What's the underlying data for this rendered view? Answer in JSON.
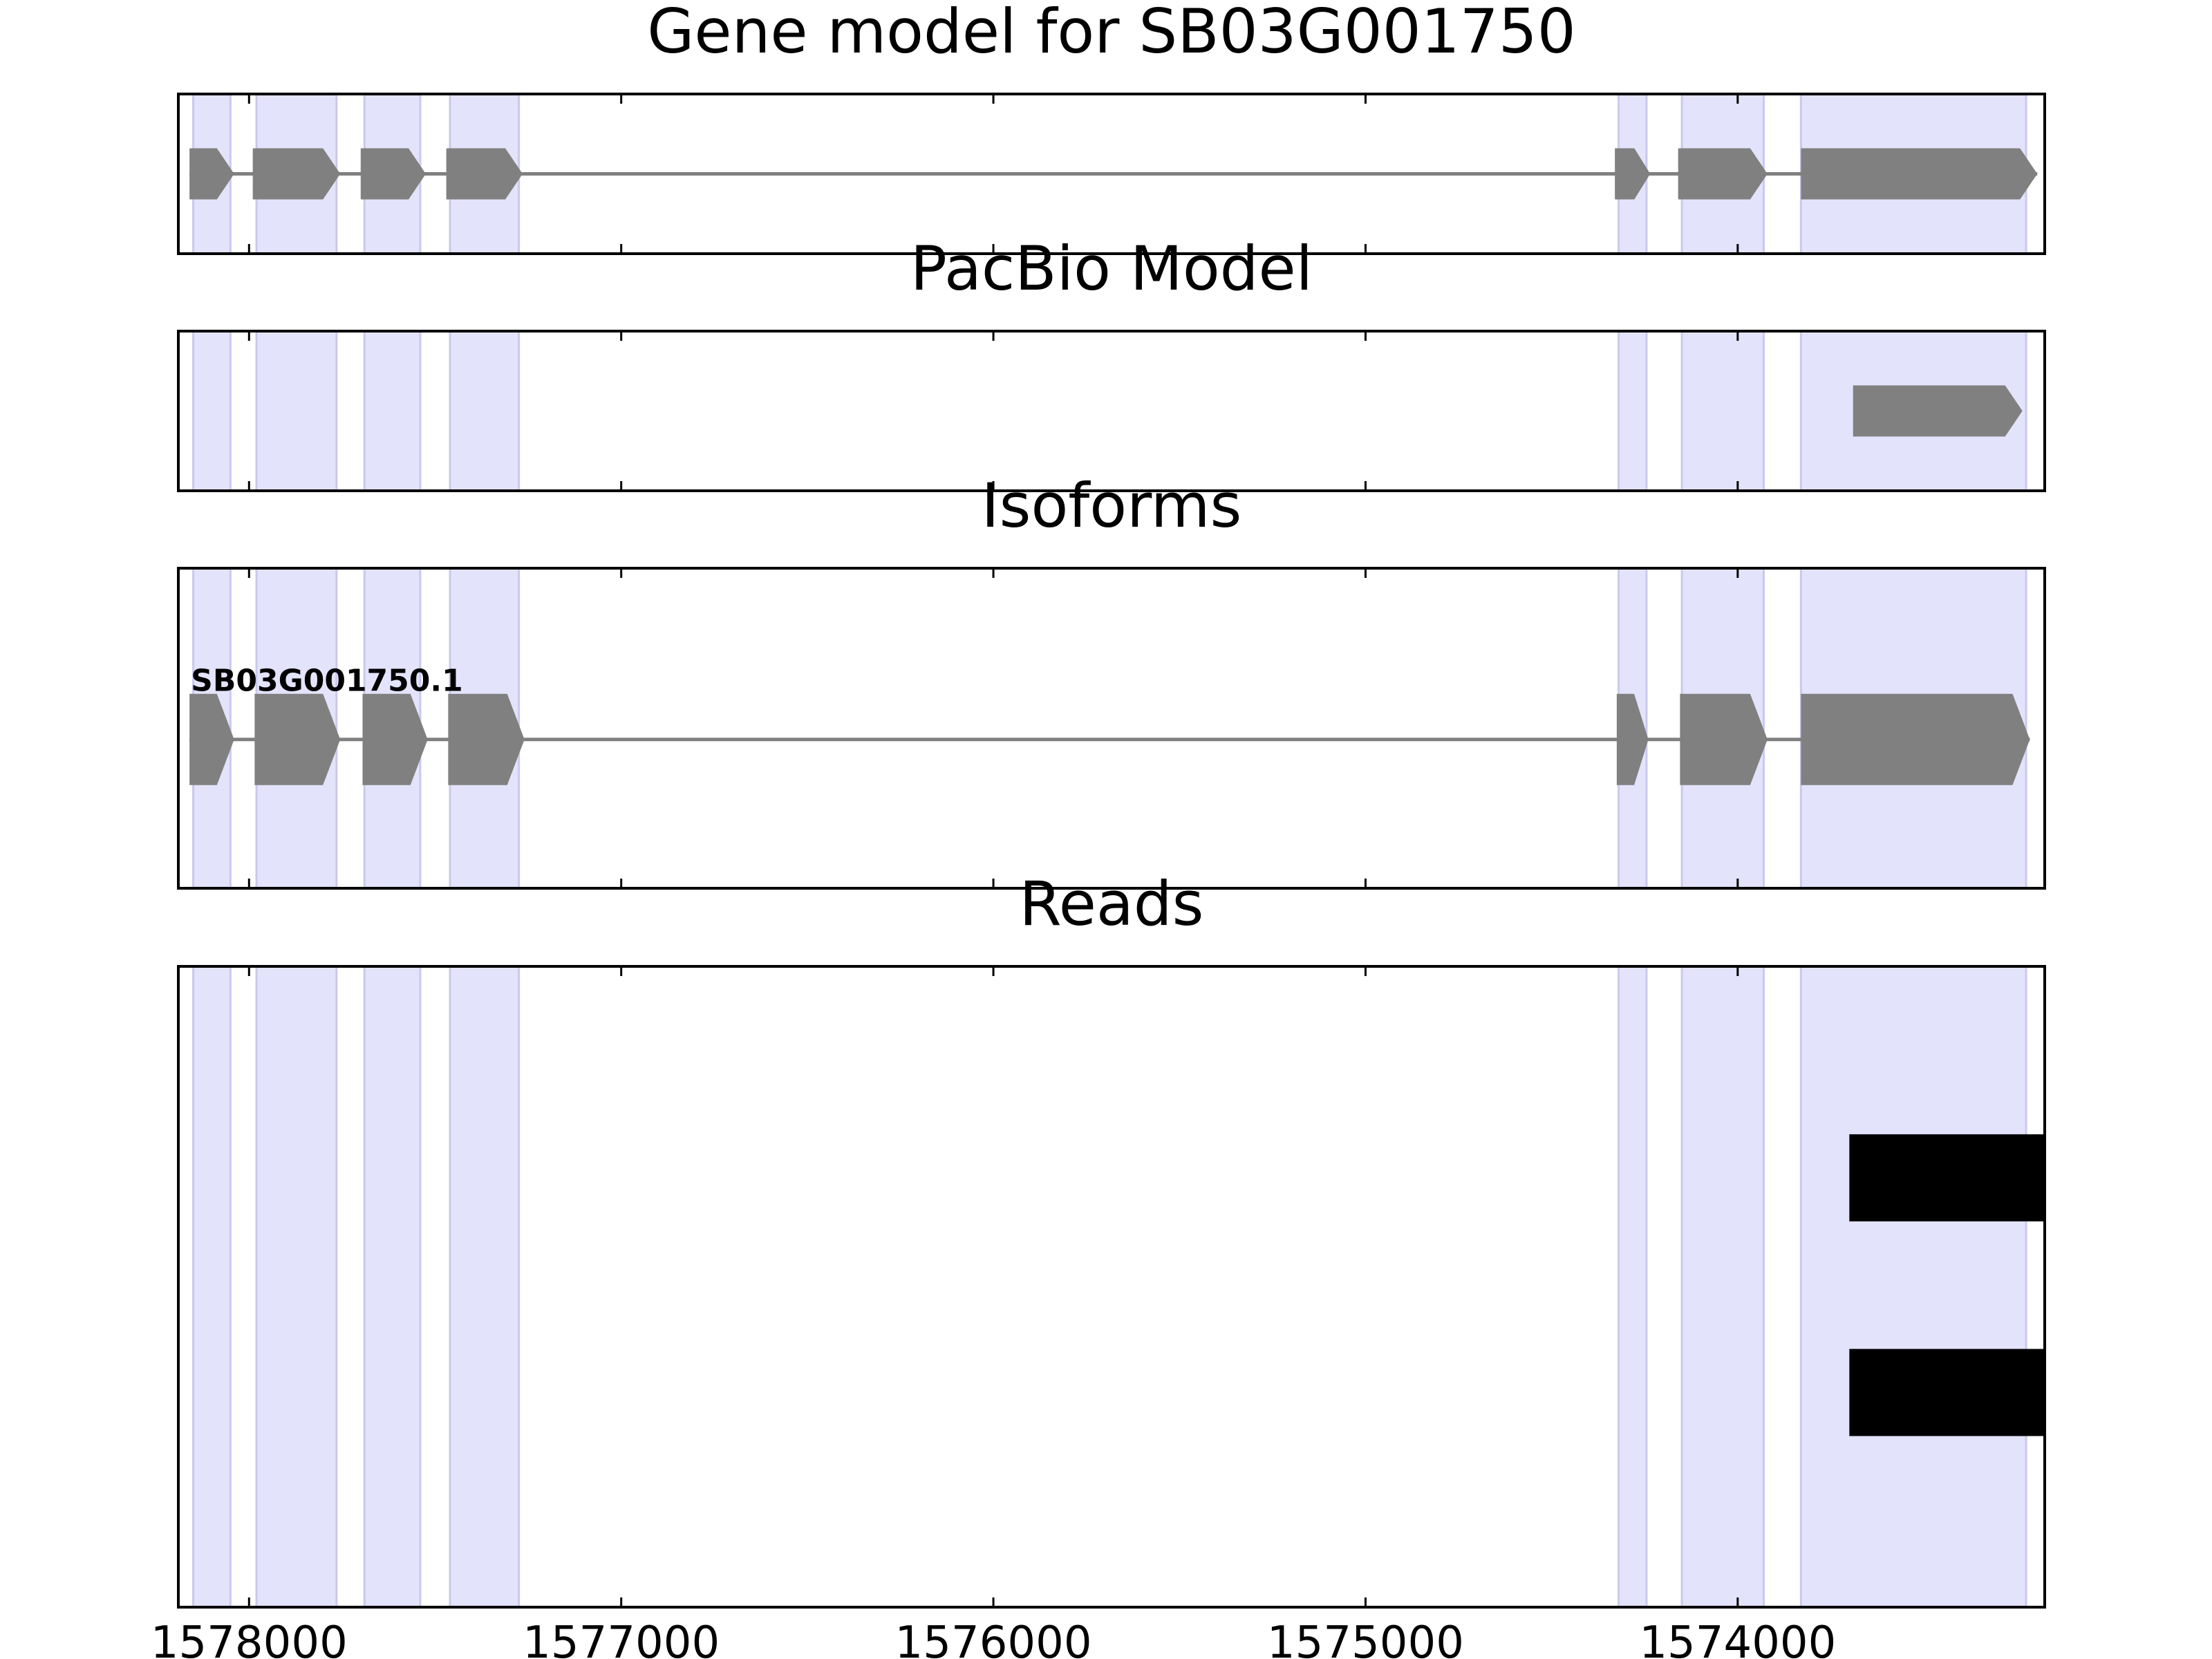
{
  "chart_data": {
    "type": "gene-track",
    "x_axis": {
      "reversed": true,
      "xlim": [
        1578190,
        1573175
      ],
      "ticks": [
        1578000,
        1577000,
        1576000,
        1575000,
        1574000
      ],
      "tick_labels": [
        "1578000",
        "1577000",
        "1576000",
        "1575000",
        "1574000"
      ]
    },
    "exon_highlight_color": "#e3e3fb",
    "exon_highlight_border": "#c9c9ef",
    "feature_color": "#808080",
    "read_color": "#000000",
    "highlight_regions": [
      [
        1578150,
        1578050
      ],
      [
        1577980,
        1577765
      ],
      [
        1577690,
        1577540
      ],
      [
        1577460,
        1577275
      ],
      [
        1574320,
        1574245
      ],
      [
        1574150,
        1573930
      ],
      [
        1573830,
        1573225
      ]
    ],
    "panels": [
      {
        "id": "gene-model",
        "title": "Gene model for SB03G001750",
        "strand": "-",
        "intron_line": [
          1578160,
          1573195
        ],
        "exons": [
          [
            1578160,
            1578040
          ],
          [
            1577990,
            1577755
          ],
          [
            1577700,
            1577525
          ],
          [
            1577470,
            1577265
          ],
          [
            1574330,
            1574235
          ],
          [
            1574160,
            1573920
          ],
          [
            1573830,
            1573195
          ]
        ]
      },
      {
        "id": "pacbio-model",
        "title": "PacBio Model",
        "strand": "-",
        "exons": [
          [
            1573690,
            1573235
          ]
        ]
      },
      {
        "id": "isoforms",
        "title": "Isoforms",
        "isoforms": [
          {
            "label": "SB03G001750.1",
            "strand": "-",
            "intron_line": [
              1578160,
              1573215
            ],
            "exons": [
              [
                1578160,
                1578040
              ],
              [
                1577985,
                1577755
              ],
              [
                1577695,
                1577520
              ],
              [
                1577465,
                1577260
              ],
              [
                1574325,
                1574240
              ],
              [
                1574155,
                1573920
              ],
              [
                1573830,
                1573215
              ]
            ]
          }
        ]
      },
      {
        "id": "reads",
        "title": "Reads",
        "reads": [
          [
            1573700,
            1573175
          ],
          [
            1573700,
            1573175
          ]
        ]
      }
    ]
  }
}
